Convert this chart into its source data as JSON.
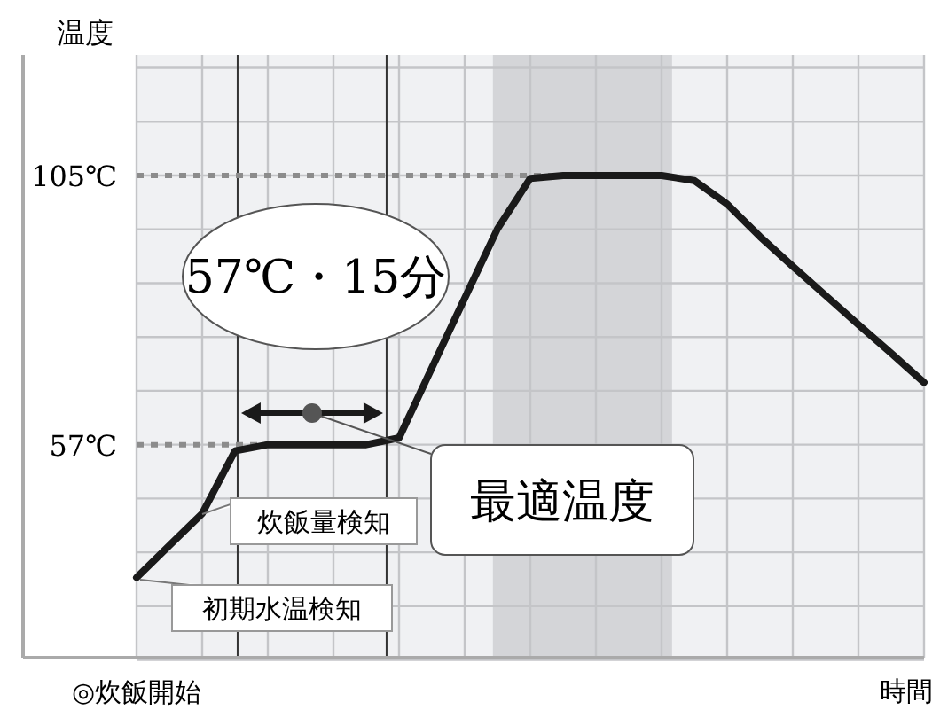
{
  "chart_data": {
    "type": "line",
    "ylabel": "温度",
    "xlabel": "時間",
    "categories": [
      null,
      null,
      null,
      null,
      null,
      null,
      null,
      null,
      null,
      null,
      null,
      null,
      null,
      null,
      null,
      null,
      null,
      null,
      null,
      null,
      null,
      null,
      null,
      null,
      null
    ],
    "series": [
      {
        "color": "#1a1a1a",
        "values": [
          33.3,
          39,
          44.7,
          55.9,
          57,
          57,
          57,
          57,
          58.2,
          70.7,
          83.1,
          95.5,
          104.5,
          105,
          105,
          105,
          105,
          104.1,
          99.9,
          94.1,
          88.8,
          83.6,
          78.4,
          73.3,
          68.1
        ]
      }
    ],
    "ylim": [
      19,
      126.5
    ],
    "yticks": [
      {
        "value": 57,
        "label": "57℃"
      },
      {
        "value": 105,
        "label": "105℃"
      }
    ],
    "ref_lines": [
      {
        "axis": "y",
        "value": 57,
        "color": "#8c8c8c",
        "line_style": "dotted"
      },
      {
        "axis": "y",
        "value": 105,
        "color": "#8c8c8c",
        "line_style": "dotted"
      }
    ],
    "annotations": [
      "57℃・15分",
      "最適温度",
      "炊飯量検知",
      "初期水温検知",
      "◎炊飯開始"
    ],
    "grid": true,
    "line_style": "solid",
    "marker": "none"
  }
}
